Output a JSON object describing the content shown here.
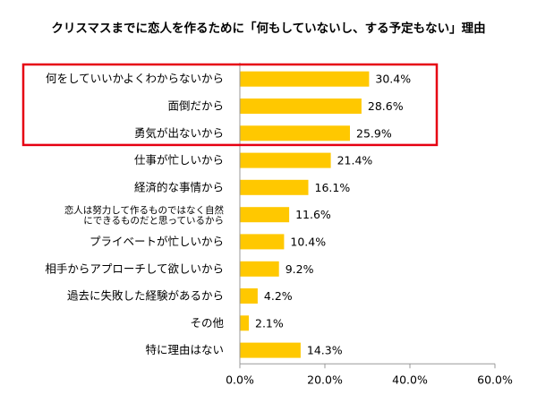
{
  "chart_data": {
    "type": "bar",
    "orientation": "horizontal",
    "title": "クリスマスまでに恋人を作るために「何もしていないし、する予定もない」理由",
    "categories": [
      [
        "何をしていいかよくわからないから"
      ],
      [
        "面倒だから"
      ],
      [
        "勇気が出ないから"
      ],
      [
        "仕事が忙しいから"
      ],
      [
        "経済的な事情から"
      ],
      [
        "恋人は努力して作るものではなく自然",
        "にできるものだと思っているから"
      ],
      [
        "プライベートが忙しいから"
      ],
      [
        "相手からアプローチして欲しいから"
      ],
      [
        "過去に失敗した経験があるから"
      ],
      [
        "その他"
      ],
      [
        "特に理由はない"
      ]
    ],
    "values": [
      30.4,
      28.6,
      25.9,
      21.4,
      16.1,
      11.6,
      10.4,
      9.2,
      4.2,
      2.1,
      14.3
    ],
    "value_labels": [
      "30.4%",
      "28.6%",
      "25.9%",
      "21.4%",
      "16.1%",
      "11.6%",
      "10.4%",
      "9.2%",
      "4.2%",
      "2.1%",
      "14.3%"
    ],
    "xlim": [
      0,
      60
    ],
    "xticks": [
      0,
      20,
      40,
      60
    ],
    "xtick_labels": [
      "0.0%",
      "20.0%",
      "40.0%",
      "60.0%"
    ],
    "xlabel": "",
    "ylabel": "",
    "grid": false,
    "highlighted_rows": [
      0,
      1,
      2
    ],
    "colors": {
      "bar": "#FFC800",
      "highlight_box": "#E60012",
      "axis": "#999999",
      "text": "#000000"
    }
  }
}
